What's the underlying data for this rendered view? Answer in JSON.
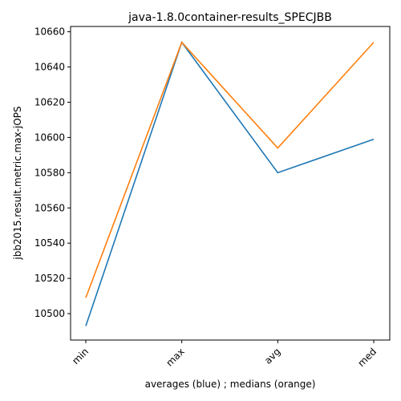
{
  "chart_data": {
    "type": "line",
    "title": "java-1.8.0container-results_SPECJBB",
    "xlabel": "averages (blue) ; medians (orange)",
    "ylabel": "jbb2015.result.metric.max-jOPS",
    "categories": [
      "min",
      "max",
      "avg",
      "med"
    ],
    "ylim": [
      10485,
      10663
    ],
    "yticks": [
      10500,
      10520,
      10540,
      10560,
      10580,
      10600,
      10620,
      10640,
      10660
    ],
    "grid": false,
    "series": [
      {
        "color": "#1f77b4",
        "values": [
          10493,
          10654,
          10580,
          10599
        ]
      },
      {
        "color": "#ff7f0e",
        "values": [
          10509,
          10654,
          10594,
          10654
        ]
      }
    ]
  }
}
